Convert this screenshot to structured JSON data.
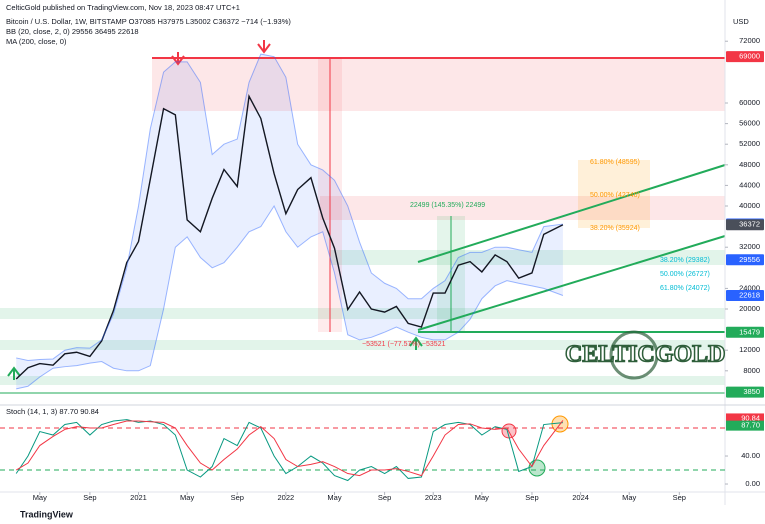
{
  "header": "CelticGold published on TradingView.com, Nov 18, 2023 08:47 UTC+1",
  "legend": [
    "Bitcoin / U.S. Dollar, 1W, BITSTAMP  O37085  H37975  L35002  C36372  −714 (−1.93%)",
    "BB (20, close, 2, 0)  29556  36495  22618",
    "MA (200, close, 0)"
  ],
  "currency": "USD",
  "logo": "CELTICGOLD",
  "footer": "TradingView",
  "annotations": {
    "gain": "22499 (145.35%) 22499",
    "loss": "−53521 (−77.57%) −53521",
    "fib_upper": [
      "61.80% (48595)",
      "50.00% (42740)",
      "38.20% (35924)"
    ],
    "fib_lower": [
      "38.20% (29382)",
      "50.00% (26727)",
      "61.80% (24072)"
    ]
  },
  "chart_data": {
    "type": "line",
    "log_scale": false,
    "grid": false,
    "x": [
      2020.17,
      2020.25,
      2020.33,
      2020.42,
      2020.5,
      2020.58,
      2020.67,
      2020.75,
      2020.83,
      2020.92,
      2021.0,
      2021.08,
      2021.17,
      2021.25,
      2021.33,
      2021.42,
      2021.5,
      2021.58,
      2021.67,
      2021.75,
      2021.83,
      2021.92,
      2022.0,
      2022.08,
      2022.17,
      2022.25,
      2022.33,
      2022.42,
      2022.5,
      2022.58,
      2022.67,
      2022.75,
      2022.83,
      2022.92,
      2023.0,
      2023.08,
      2023.17,
      2023.25,
      2023.33,
      2023.42,
      2023.5,
      2023.58,
      2023.67,
      2023.75,
      2023.88
    ],
    "xlim": [
      2020.06,
      2024.98
    ],
    "xticks": [
      {
        "value": 2020.33,
        "label": "May"
      },
      {
        "value": 2020.67,
        "label": "Sep"
      },
      2021,
      {
        "value": 2021.33,
        "label": "May"
      },
      {
        "value": 2021.67,
        "label": "Sep"
      },
      2022,
      {
        "value": 2022.33,
        "label": "May"
      },
      {
        "value": 2022.67,
        "label": "Sep"
      },
      2023,
      {
        "value": 2023.33,
        "label": "May"
      },
      {
        "value": 2023.67,
        "label": "Sep"
      },
      2024,
      {
        "value": 2024.33,
        "label": "May"
      },
      {
        "value": 2024.67,
        "label": "Sep"
      }
    ],
    "ylim": [
      1360,
      78450
    ],
    "yticks": [
      8000,
      12000,
      20000,
      24000,
      32000,
      40000,
      44000,
      48000,
      52000,
      56000,
      60000,
      72000
    ],
    "series": [
      {
        "name": "Bitcoin / U.S. Dollar",
        "color": "#131722",
        "values": [
          6400,
          8600,
          9400,
          9100,
          11300,
          11600,
          10800,
          13800,
          19700,
          29000,
          33100,
          45200,
          58900,
          57700,
          37300,
          35000,
          41500,
          47100,
          43800,
          61300,
          57000,
          46300,
          38500,
          43200,
          45500,
          37700,
          31800,
          19900,
          23300,
          20000,
          19400,
          20500,
          17200,
          16500,
          23100,
          23100,
          28500,
          29200,
          27200,
          30500,
          29200,
          26000,
          27000,
          34500,
          36372
        ]
      },
      {
        "name": "BB upper",
        "color": "#2962ff",
        "values": [
          10500,
          10000,
          10200,
          10300,
          12000,
          12500,
          12400,
          14000,
          19000,
          28000,
          40000,
          55000,
          66000,
          68000,
          68000,
          64000,
          50000,
          52000,
          53000,
          64000,
          69500,
          69000,
          65000,
          52000,
          48000,
          47000,
          45000,
          40000,
          33000,
          27000,
          25000,
          24000,
          22000,
          22000,
          24000,
          25500,
          30000,
          31000,
          31000,
          32000,
          32000,
          31500,
          31000,
          36000,
          36495
        ]
      },
      {
        "name": "BB lower",
        "color": "#2962ff",
        "values": [
          4500,
          5000,
          6800,
          8500,
          8800,
          9000,
          9500,
          9800,
          8500,
          8000,
          8000,
          9000,
          20000,
          32000,
          34000,
          30000,
          28000,
          29000,
          32000,
          35000,
          36000,
          40000,
          35000,
          32000,
          34000,
          35000,
          27000,
          15000,
          14000,
          14500,
          15500,
          16500,
          15500,
          14500,
          14000,
          14000,
          15500,
          18000,
          22000,
          24500,
          25500,
          25000,
          24500,
          24000,
          22618
        ]
      }
    ],
    "price_labels": [
      {
        "value": 69000,
        "color": "#f23645"
      },
      {
        "value": 36495,
        "color": "#2962ff"
      },
      {
        "value": 36372,
        "color": "#4a4f5a"
      },
      {
        "value": 29556,
        "color": "#2962ff"
      },
      {
        "value": 22618,
        "color": "#2962ff"
      },
      {
        "value": 15479,
        "color": "#22ab5a"
      },
      {
        "value": 3850,
        "color": "#22ab5a"
      }
    ],
    "stoch": {
      "title": "Stoch (14, 1, 3)  87.70  90.84",
      "ylim": [
        -11.4,
        112.9
      ],
      "yticks": [
        {
          "value": 0,
          "label": "0.00"
        },
        {
          "value": 40,
          "label": "40.00"
        }
      ],
      "levels": [
        80,
        20
      ],
      "series": [
        {
          "name": "%K",
          "color": "#089981",
          "values": [
            15,
            40,
            75,
            70,
            85,
            88,
            70,
            85,
            90,
            92,
            88,
            90,
            85,
            70,
            20,
            10,
            25,
            65,
            55,
            88,
            80,
            40,
            15,
            25,
            40,
            30,
            12,
            5,
            20,
            25,
            15,
            25,
            8,
            10,
            75,
            85,
            88,
            85,
            70,
            82,
            78,
            18,
            25,
            85,
            87.7
          ]
        },
        {
          "name": "%D",
          "color": "#f23645",
          "values": [
            20,
            30,
            55,
            68,
            78,
            82,
            80,
            80,
            85,
            90,
            90,
            89,
            88,
            80,
            55,
            30,
            20,
            35,
            50,
            70,
            82,
            65,
            35,
            25,
            28,
            32,
            25,
            15,
            12,
            20,
            20,
            22,
            18,
            12,
            40,
            70,
            85,
            86,
            80,
            78,
            80,
            50,
            25,
            55,
            90.84
          ]
        }
      ],
      "last_labels": [
        {
          "value": 90.84,
          "label": "90.84",
          "color": "#f23645"
        },
        {
          "value": 87.7,
          "label": "87.70",
          "color": "#22ab5a"
        }
      ]
    }
  }
}
